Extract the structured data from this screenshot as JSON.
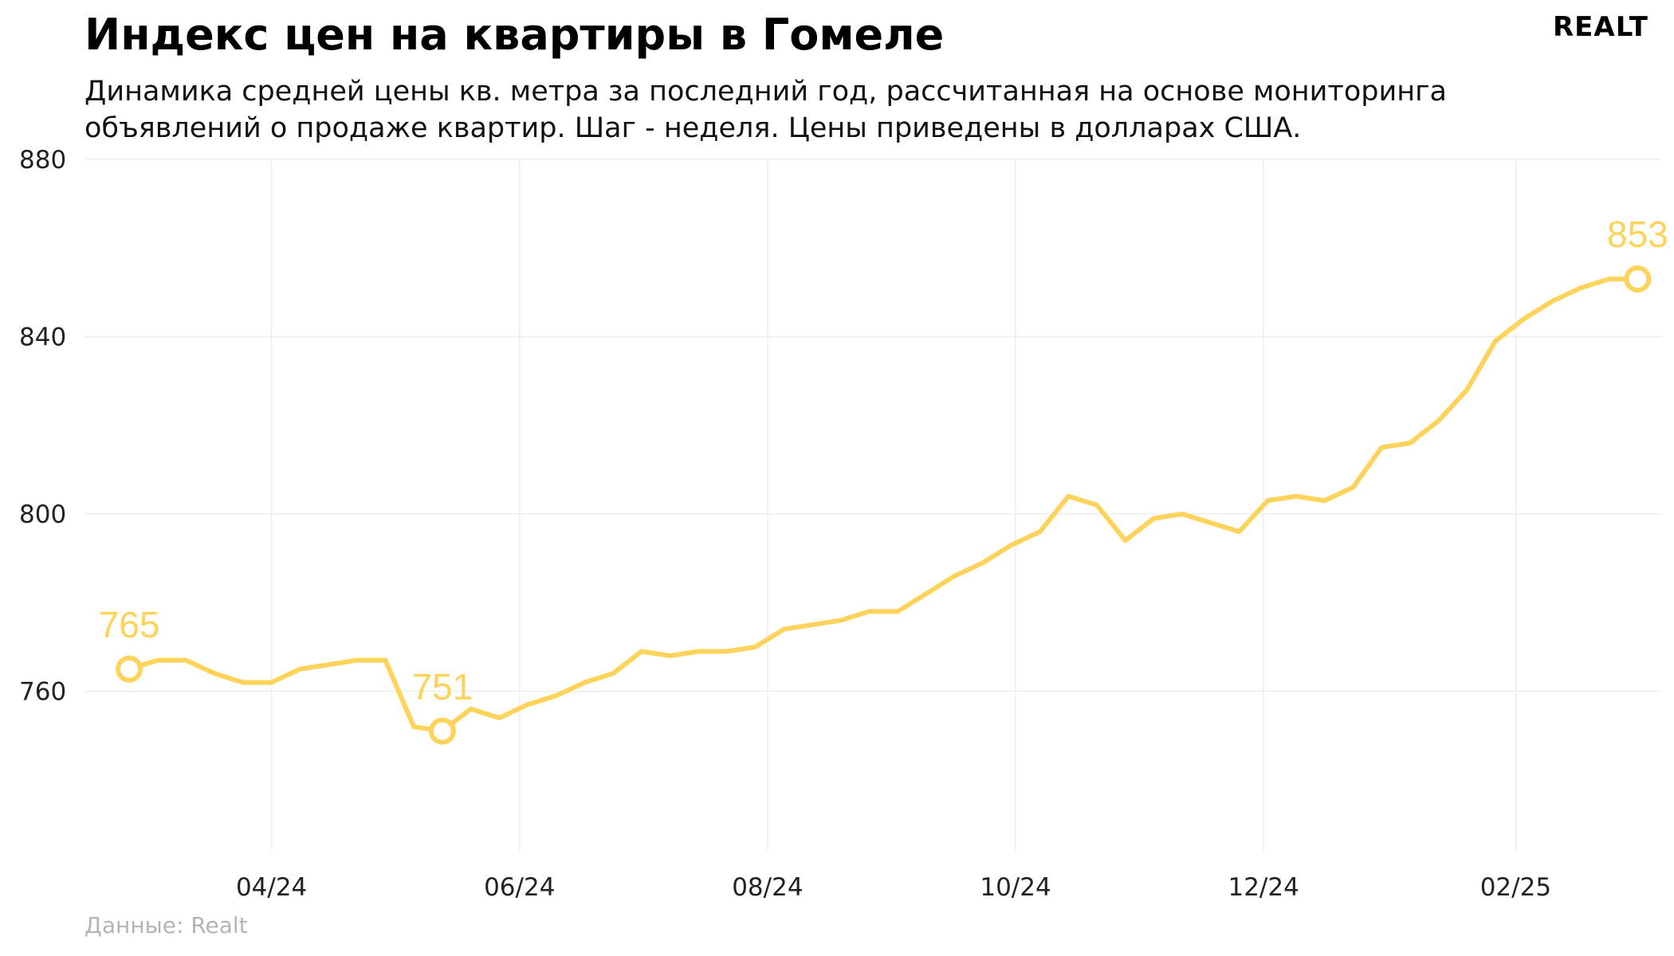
{
  "header": {
    "title": "Индекс цен на квартиры в Гомеле",
    "subtitle": "Динамика средней цены кв. метра за последний год, рассчитанная на основе мониторинга объявлений о продаже квартир. Шаг - неделя. Цены приведены в долларах США.",
    "logo": "REALT"
  },
  "footer": {
    "source": "Данные: Realt"
  },
  "colors": {
    "line": "#fdd35b",
    "grid": "#eeeeee",
    "background": "#ffffff"
  },
  "chart_data": {
    "type": "line",
    "title": "Индекс цен на квартиры в Гомеле",
    "xlabel": "",
    "ylabel": "",
    "x_tick_labels": [
      "04/24",
      "06/24",
      "08/24",
      "10/24",
      "12/24",
      "02/25"
    ],
    "x_tick_dates": [
      "2024-04-01",
      "2024-06-01",
      "2024-08-01",
      "2024-10-01",
      "2024-12-01",
      "2025-02-01"
    ],
    "y_ticks": [
      760,
      800,
      840,
      880
    ],
    "ylim": [
      724,
      880
    ],
    "xlim": [
      "2024-02-15",
      "2025-03-09"
    ],
    "grid": true,
    "legend": "none",
    "series": [
      {
        "x": [
          "2024-02-26",
          "2024-03-04",
          "2024-03-11",
          "2024-03-18",
          "2024-03-25",
          "2024-04-01",
          "2024-04-08",
          "2024-04-15",
          "2024-04-22",
          "2024-04-29",
          "2024-05-06",
          "2024-05-13",
          "2024-05-20",
          "2024-05-27",
          "2024-06-03",
          "2024-06-10",
          "2024-06-17",
          "2024-06-24",
          "2024-07-01",
          "2024-07-08",
          "2024-07-15",
          "2024-07-22",
          "2024-07-29",
          "2024-08-05",
          "2024-08-12",
          "2024-08-19",
          "2024-08-26",
          "2024-09-02",
          "2024-09-09",
          "2024-09-16",
          "2024-09-23",
          "2024-09-30",
          "2024-10-07",
          "2024-10-14",
          "2024-10-21",
          "2024-10-28",
          "2024-11-04",
          "2024-11-11",
          "2024-11-18",
          "2024-11-25",
          "2024-12-02",
          "2024-12-09",
          "2024-12-16",
          "2024-12-23",
          "2024-12-30",
          "2025-01-06",
          "2025-01-13",
          "2025-01-20",
          "2025-01-27",
          "2025-02-03",
          "2025-02-10",
          "2025-02-17",
          "2025-02-24",
          "2025-03-03"
        ],
        "values": [
          765,
          767,
          767,
          764,
          762,
          762,
          765,
          766,
          767,
          767,
          752,
          751,
          756,
          754,
          757,
          759,
          762,
          764,
          769,
          768,
          769,
          769,
          770,
          774,
          775,
          776,
          778,
          778,
          782,
          786,
          789,
          793,
          796,
          804,
          802,
          794,
          799,
          800,
          798,
          796,
          803,
          804,
          803,
          806,
          815,
          816,
          821,
          828,
          839,
          844,
          848,
          851,
          853,
          853
        ],
        "annotations": [
          {
            "x": "2024-02-26",
            "value": 765,
            "label": "765"
          },
          {
            "x": "2024-05-13",
            "value": 751,
            "label": "751"
          },
          {
            "x": "2025-03-03",
            "value": 853,
            "label": "853"
          }
        ]
      }
    ]
  }
}
